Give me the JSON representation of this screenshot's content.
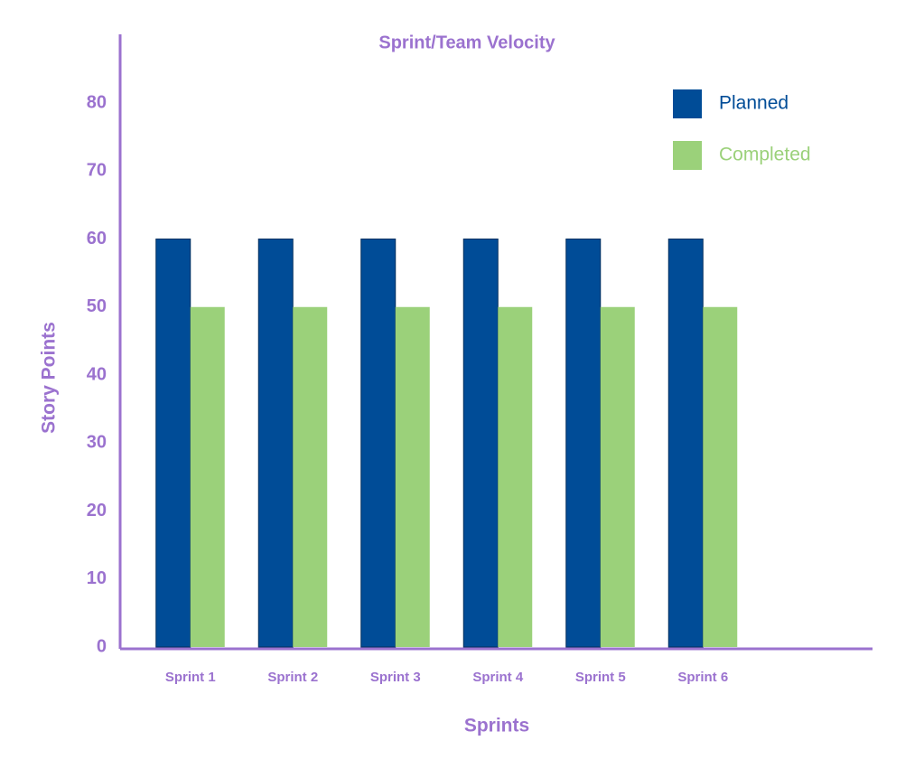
{
  "chart_data": {
    "type": "bar",
    "title": "Sprint/Team Velocity",
    "x_label": "Sprints",
    "y_label": "Story Points",
    "categories": [
      "Sprint 1",
      "Sprint 2",
      "Sprint 3",
      "Sprint 4",
      "Sprint 5",
      "Sprint 6"
    ],
    "series": [
      {
        "name": "Planned",
        "color": "#004c97",
        "values": [
          60,
          60,
          60,
          60,
          60,
          60
        ]
      },
      {
        "name": "Completed",
        "color": "#9bd17a",
        "values": [
          50,
          50,
          50,
          50,
          50,
          50
        ]
      }
    ],
    "ylim": [
      0,
      90
    ],
    "yticks": [
      0,
      10,
      20,
      30,
      40,
      50,
      60,
      70,
      80
    ],
    "grid": false
  }
}
